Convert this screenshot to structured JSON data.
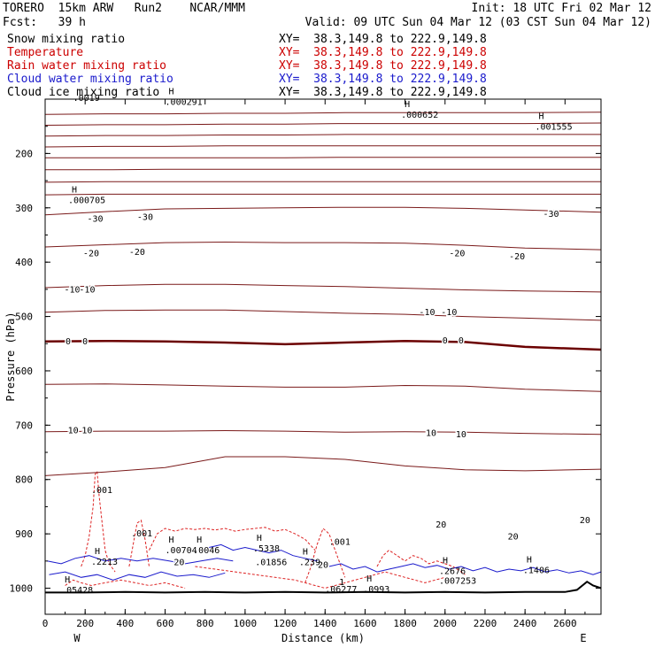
{
  "header": {
    "model": "TORERO  15km ARW   Run2    NCAR/MMM",
    "init": "Init: 18 UTC Fri 02 Mar 12",
    "fcst": "Fcst:   39 h",
    "valid": "Valid: 09 UTC Sun 04 Mar 12 (03 CST Sun 04 Mar 12)"
  },
  "legend": [
    {
      "field": "Snow mixing ratio",
      "xy": "XY=  38.3,149.8 to 222.9,149.8",
      "color": "#000000"
    },
    {
      "field": "Temperature",
      "xy": "XY=  38.3,149.8 to 222.9,149.8",
      "color": "#cc0000"
    },
    {
      "field": "Rain water mixing ratio",
      "xy": "XY=  38.3,149.8 to 222.9,149.8",
      "color": "#cc0000"
    },
    {
      "field": "Cloud water mixing ratio",
      "xy": "XY=  38.3,149.8 to 222.9,149.8",
      "color": "#0000cc"
    },
    {
      "field": "Cloud ice mixing ratio",
      "xy": "XY=  38.3,149.8 to 222.9,149.8",
      "color": "#000000"
    }
  ],
  "chart_data": {
    "type": "cross-section contour",
    "xlabel": "Distance (km)",
    "ylabel": "Pressure (hPa)",
    "x_ticks": [
      0,
      200,
      400,
      600,
      800,
      1000,
      1200,
      1400,
      1600,
      1800,
      2000,
      2200,
      2400,
      2600
    ],
    "y_ticks": [
      200,
      300,
      400,
      500,
      600,
      700,
      800,
      900,
      1000
    ],
    "xlim": [
      0,
      2780
    ],
    "ylim": [
      1048,
      100
    ],
    "y_scale": "linear-inverted",
    "end_labels": {
      "left": "W",
      "right": "E"
    },
    "colors": {
      "temperature": "#7a1a1a",
      "zero_isotherm": "#6b0000",
      "rain": "#dd2222",
      "cloud_water": "#1a1acc",
      "ground": "#000000"
    },
    "temperature_isotherms_x": [
      0,
      300,
      600,
      900,
      1200,
      1500,
      1800,
      2100,
      2400,
      2780
    ],
    "temperature_isotherms": [
      {
        "p": [
          128,
          127,
          127,
          126,
          126,
          125,
          125,
          125,
          125,
          124
        ]
      },
      {
        "p": [
          148,
          147,
          147,
          146,
          146,
          145,
          145,
          145,
          145,
          144
        ]
      },
      {
        "p": [
          168,
          167,
          167,
          166,
          166,
          165,
          165,
          165,
          165,
          165
        ]
      },
      {
        "p": [
          188,
          187,
          187,
          186,
          186,
          186,
          186,
          186,
          186,
          186
        ]
      },
      {
        "p": [
          208,
          208,
          208,
          208,
          208,
          207,
          207,
          207,
          207,
          207
        ]
      },
      {
        "p": [
          230,
          230,
          229,
          229,
          229,
          229,
          229,
          229,
          229,
          229
        ]
      },
      {
        "p": [
          253,
          252,
          252,
          252,
          252,
          252,
          252,
          252,
          252,
          252
        ]
      },
      {
        "p": [
          276,
          275,
          275,
          275,
          275,
          275,
          275,
          275,
          275,
          275
        ]
      },
      {
        "value": -30,
        "p": [
          313,
          307,
          302,
          301,
          300,
          299,
          299,
          301,
          304,
          308
        ]
      },
      {
        "value": -20,
        "p": [
          372,
          368,
          364,
          363,
          364,
          364,
          365,
          369,
          374,
          377
        ]
      },
      {
        "value": -10,
        "p": [
          447,
          443,
          441,
          441,
          443,
          445,
          448,
          451,
          453,
          455
        ]
      },
      {
        "p": [
          492,
          489,
          488,
          488,
          491,
          494,
          496,
          500,
          503,
          507
        ]
      },
      {
        "value": 0,
        "p": [
          546,
          545,
          546,
          548,
          551,
          548,
          545,
          547,
          556,
          561
        ]
      },
      {
        "p": [
          625,
          624,
          626,
          628,
          630,
          630,
          627,
          628,
          634,
          638
        ]
      },
      {
        "value": 10,
        "p": [
          712,
          711,
          711,
          710,
          711,
          713,
          712,
          713,
          715,
          717
        ]
      },
      {
        "p": [
          793,
          786,
          778,
          758,
          758,
          763,
          775,
          782,
          784,
          781
        ]
      }
    ],
    "temperature_labels": [
      {
        "x": 135,
        "p": 449,
        "text": "-10"
      },
      {
        "x": 210,
        "p": 449,
        "text": "-10"
      },
      {
        "x": 1910,
        "p": 491,
        "text": "-10"
      },
      {
        "x": 2020,
        "p": 491,
        "text": "-10"
      },
      {
        "x": 115,
        "p": 545,
        "text": "0"
      },
      {
        "x": 200,
        "p": 545,
        "text": "0"
      },
      {
        "x": 2000,
        "p": 543,
        "text": "0"
      },
      {
        "x": 2080,
        "p": 543,
        "text": "0"
      },
      {
        "x": 140,
        "p": 708,
        "text": "10"
      },
      {
        "x": 210,
        "p": 708,
        "text": "10"
      },
      {
        "x": 1930,
        "p": 713,
        "text": "10"
      },
      {
        "x": 2080,
        "p": 716,
        "text": "10"
      },
      {
        "x": 2060,
        "p": 383,
        "text": "-20"
      },
      {
        "x": 2360,
        "p": 388,
        "text": "-20"
      },
      {
        "x": 230,
        "p": 383,
        "text": "-20"
      },
      {
        "x": 460,
        "p": 380,
        "text": "-20"
      },
      {
        "x": 250,
        "p": 319,
        "text": "-30"
      },
      {
        "x": 500,
        "p": 316,
        "text": "-30"
      },
      {
        "x": 2530,
        "p": 310,
        "text": "-30"
      },
      {
        "x": 1980,
        "p": 882,
        "text": "20"
      },
      {
        "x": 2340,
        "p": 904,
        "text": "20"
      },
      {
        "x": 2700,
        "p": 874,
        "text": "20"
      },
      {
        "x": 670,
        "p": 951,
        "text": "20"
      },
      {
        "x": 1390,
        "p": 956,
        "text": "20"
      }
    ],
    "maxima_labels": [
      {
        "x": 140,
        "p": 97,
        "text": ".0019"
      },
      {
        "x": 600,
        "p": 104,
        "text": ".000291",
        "h": true
      },
      {
        "x": 1780,
        "p": 128,
        "text": ".000652",
        "h": true
      },
      {
        "x": 2450,
        "p": 150,
        "text": ".001555",
        "h": true
      },
      {
        "x": 115,
        "p": 285,
        "text": ".000705",
        "h": true
      },
      {
        "x": 230,
        "p": 950,
        "text": ".2213",
        "h": true
      },
      {
        "x": 80,
        "p": 1002,
        "text": ".05428",
        "h": true
      },
      {
        "x": 600,
        "p": 929,
        "text": ".00704",
        "h": true
      },
      {
        "x": 740,
        "p": 929,
        "text": ".0046",
        "h": true
      },
      {
        "x": 1040,
        "p": 926,
        "text": ".5338",
        "h": true
      },
      {
        "x": 1050,
        "p": 951,
        "text": ".01856"
      },
      {
        "x": 1270,
        "p": 951,
        "text": ".239",
        "h": true
      },
      {
        "x": 1400,
        "p": 1001,
        "text": ".06277"
      },
      {
        "x": 1590,
        "p": 1001,
        "text": ".0993",
        "h": true
      },
      {
        "x": 1970,
        "p": 967,
        "text": ".2676",
        "h": true
      },
      {
        "x": 1970,
        "p": 985,
        "text": ".007253"
      },
      {
        "x": 2390,
        "p": 966,
        "text": ".1406",
        "h": true
      },
      {
        "x": 430,
        "p": 898,
        "text": ".001"
      },
      {
        "x": 1420,
        "p": 914,
        "text": ".001"
      },
      {
        "x": 230,
        "p": 818,
        "text": ".001"
      },
      {
        "x": 1470,
        "p": 988,
        "text": "1"
      }
    ],
    "rain_mixing_ratio_regions": [
      {
        "x": [
          180,
          200,
          220,
          240,
          250,
          260,
          270,
          300,
          320,
          340,
          350
        ],
        "p": [
          960,
          940,
          905,
          850,
          790,
          785,
          830,
          930,
          955,
          965,
          970
        ]
      },
      {
        "x": [
          420,
          440,
          460,
          480,
          500,
          520
        ],
        "p": [
          960,
          920,
          880,
          875,
          910,
          960
        ]
      },
      {
        "x": [
          520,
          560,
          600,
          650,
          700,
          750,
          800,
          850,
          900,
          950,
          1000,
          1050,
          1100,
          1150,
          1200,
          1250,
          1300,
          1350
        ],
        "p": [
          930,
          900,
          890,
          895,
          890,
          892,
          890,
          893,
          890,
          895,
          892,
          890,
          888,
          895,
          892,
          900,
          910,
          930
        ]
      },
      {
        "x": [
          1300,
          1330,
          1360,
          1390,
          1420,
          1450,
          1480,
          1500
        ],
        "p": [
          990,
          960,
          920,
          890,
          900,
          930,
          960,
          980
        ]
      },
      {
        "x": [
          1660,
          1690,
          1720,
          1760,
          1800,
          1840,
          1880,
          1920,
          1960,
          2000,
          2040,
          2080,
          2100
        ],
        "p": [
          960,
          940,
          930,
          940,
          950,
          940,
          945,
          955,
          950,
          955,
          960,
          970,
          975
        ]
      },
      {
        "x": [
          100,
          140,
          180,
          230,
          300,
          380,
          450,
          520,
          600,
          700
        ],
        "p": [
          995,
          985,
          990,
          995,
          990,
          985,
          990,
          995,
          990,
          1000
        ]
      },
      {
        "x": [
          750,
          850,
          950,
          1050,
          1150,
          1250,
          1300,
          1350,
          1400,
          1450,
          1500,
          1550,
          1600,
          1650,
          1700,
          1750,
          1800,
          1850,
          1900,
          1950,
          2000
        ],
        "p": [
          960,
          965,
          970,
          975,
          980,
          985,
          990,
          995,
          1000,
          995,
          990,
          985,
          980,
          975,
          970,
          975,
          980,
          985,
          990,
          985,
          980
        ]
      }
    ],
    "cloud_water_regions": [
      {
        "x": [
          10,
          80,
          150,
          220,
          300,
          380,
          460,
          540,
          620,
          700,
          780,
          860,
          940
        ],
        "p": [
          950,
          955,
          945,
          940,
          950,
          945,
          950,
          945,
          950,
          955,
          950,
          945,
          950
        ]
      },
      {
        "x": [
          20,
          100,
          180,
          260,
          340,
          420,
          500,
          580,
          660,
          740,
          820,
          900
        ],
        "p": [
          975,
          970,
          980,
          975,
          985,
          975,
          980,
          970,
          978,
          975,
          980,
          972
        ]
      },
      {
        "x": [
          820,
          880,
          940,
          1000,
          1060,
          1120,
          1180,
          1240,
          1300,
          1360,
          1420
        ],
        "p": [
          925,
          920,
          930,
          925,
          930,
          935,
          930,
          940,
          945,
          950,
          955
        ]
      },
      {
        "x": [
          1420,
          1480,
          1540,
          1600,
          1660,
          1720,
          1780,
          1840,
          1900,
          1960,
          2020,
          2080,
          2140,
          2200,
          2260,
          2320,
          2380,
          2440,
          2500,
          2560,
          2620,
          2680,
          2740,
          2780
        ],
        "p": [
          960,
          955,
          965,
          960,
          970,
          965,
          960,
          955,
          962,
          958,
          965,
          960,
          968,
          962,
          970,
          965,
          968,
          962,
          970,
          966,
          972,
          968,
          975,
          970
        ]
      }
    ],
    "ground": {
      "x": [
        0,
        200,
        400,
        600,
        800,
        1000,
        1200,
        1400,
        1600,
        1800,
        2000,
        2200,
        2400,
        2600,
        2660,
        2710,
        2740,
        2780
      ],
      "p": [
        1008,
        1008,
        1007,
        1008,
        1007,
        1008,
        1007,
        1008,
        1007,
        1008,
        1007,
        1008,
        1007,
        1007,
        1003,
        988,
        995,
        1000
      ]
    }
  }
}
